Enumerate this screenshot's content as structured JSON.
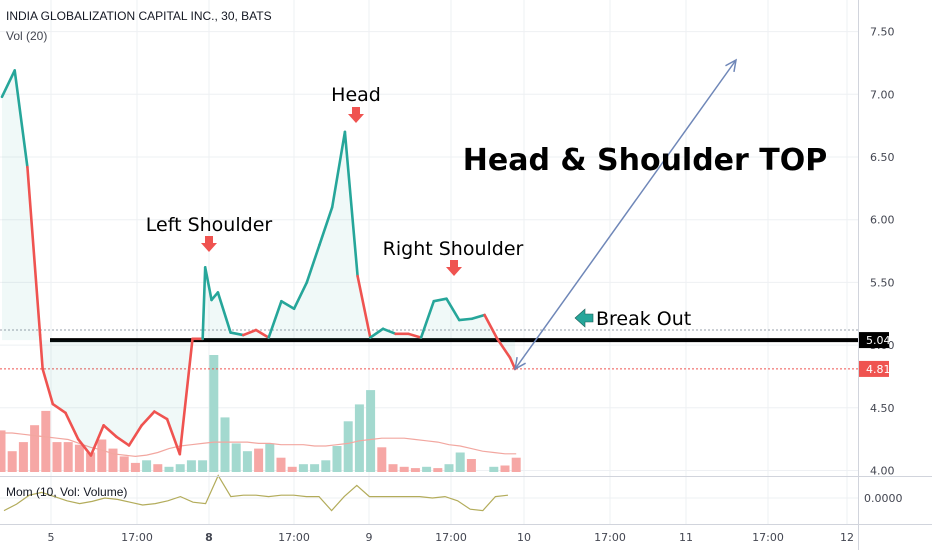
{
  "header": {
    "symbol_line": "INDIA GLOBALIZATION CAPITAL INC., 30, BATS",
    "volume_indicator": "Vol (20)",
    "momentum_indicator": "Mom (10, Vol: Volume)"
  },
  "annotations": {
    "title": "Head & Shoulder TOP",
    "head": "Head",
    "left_shoulder": "Left Shoulder",
    "right_shoulder": "Right Shoulder",
    "break_out": "Break Out"
  },
  "colors": {
    "up": "#26a69a",
    "down": "#ef5350",
    "marker": "#ef5350",
    "projection": "#6f87b8",
    "breakout_arrow": "#26a69a",
    "momentum": "#b3ac5b",
    "volume_ma": "#f2a7a0",
    "grid": "#eef0f3"
  },
  "chart_data": [
    {
      "type": "line",
      "name": "price",
      "x_tick_labels": [
        "5",
        "17:00",
        "8",
        "17:00",
        "9",
        "17:00",
        "10",
        "17:00",
        "11",
        "17:00",
        "12"
      ],
      "bold_x_ticks": [
        "8"
      ],
      "y_tick_labels": [
        "4.00",
        "4.50",
        "5.00",
        "5.50",
        "6.00",
        "6.50",
        "7.00",
        "7.50"
      ],
      "ylim": [
        4.0,
        7.78
      ],
      "grid": true,
      "x": [
        0,
        1,
        2,
        3,
        3.2,
        4,
        5,
        6,
        7,
        8,
        9,
        10,
        11,
        12,
        13,
        14,
        15,
        15.8,
        16,
        16.5,
        17,
        18,
        19,
        20,
        21,
        22,
        23,
        24,
        25,
        26,
        27,
        28,
        29,
        30,
        31,
        32,
        33,
        34,
        35,
        36,
        37,
        38,
        39,
        40,
        40.4
      ],
      "values": [
        6.98,
        7.19,
        6.42,
        5.08,
        4.81,
        4.53,
        4.46,
        4.25,
        4.12,
        4.36,
        4.27,
        4.2,
        4.36,
        4.47,
        4.41,
        4.13,
        5.05,
        5.05,
        5.62,
        5.36,
        5.42,
        5.1,
        5.08,
        5.12,
        5.06,
        5.35,
        5.29,
        5.5,
        5.8,
        6.1,
        6.7,
        5.55,
        5.06,
        5.13,
        5.09,
        5.09,
        5.06,
        5.35,
        5.37,
        5.2,
        5.21,
        5.24,
        5.05,
        4.9,
        4.81
      ],
      "segment_colors": [
        "up",
        "up",
        "down",
        "down",
        "down",
        "down",
        "down",
        "down",
        "down",
        "down",
        "down",
        "down",
        "down",
        "down",
        "down",
        "down",
        "down",
        "up",
        "up",
        "up",
        "up",
        "up",
        "down",
        "down",
        "up",
        "up",
        "up",
        "up",
        "up",
        "up",
        "up",
        "down",
        "up",
        "up",
        "down",
        "down",
        "up",
        "up",
        "up",
        "up",
        "up",
        "down",
        "down",
        "down"
      ],
      "reference_levels": [
        {
          "label": "5.04",
          "value": 5.04,
          "style": "thick-black"
        },
        {
          "label": "4.81",
          "value": 4.81,
          "style": "dotted-red"
        },
        {
          "label": "",
          "value": 5.12,
          "style": "dotted-grey"
        }
      ],
      "projection_arrow": {
        "from": [
          40.4,
          4.81
        ],
        "to": [
          58.4,
          7.3
        ]
      }
    },
    {
      "type": "bar",
      "name": "Vol (20)",
      "values": [
        0.32,
        0.16,
        0.23,
        0.36,
        0.47,
        0.23,
        0.23,
        0.21,
        0.15,
        0.25,
        0.18,
        0.12,
        0.07,
        0.09,
        0.06,
        0.04,
        0.06,
        0.09,
        0.09,
        0.9,
        0.42,
        0.22,
        0.16,
        0.18,
        0.22,
        0.11,
        0.04,
        0.06,
        0.06,
        0.09,
        0.2,
        0.39,
        0.52,
        0.63,
        0.19,
        0.06,
        0.04,
        0.03,
        0.04,
        0.03,
        0.06,
        0.15,
        0.1,
        0.0,
        0.04,
        0.05,
        0.11
      ],
      "colors": [
        "down",
        "down",
        "down",
        "down",
        "down",
        "down",
        "down",
        "down",
        "down",
        "down",
        "down",
        "down",
        "down",
        "up",
        "down",
        "up",
        "up",
        "up",
        "up",
        "up",
        "up",
        "up",
        "up",
        "down",
        "up",
        "down",
        "down",
        "up",
        "up",
        "up",
        "up",
        "up",
        "up",
        "up",
        "down",
        "down",
        "down",
        "down",
        "up",
        "down",
        "up",
        "up",
        "down",
        "up",
        "up",
        "down",
        "down"
      ],
      "ma_values": [
        0.3,
        0.3,
        0.29,
        0.28,
        0.27,
        0.26,
        0.25,
        0.22,
        0.19,
        0.17,
        0.14,
        0.13,
        0.12,
        0.13,
        0.15,
        0.18,
        0.2,
        0.21,
        0.22,
        0.23,
        0.23,
        0.23,
        0.23,
        0.22,
        0.22,
        0.21,
        0.21,
        0.21,
        0.2,
        0.2,
        0.21,
        0.22,
        0.24,
        0.25,
        0.26,
        0.26,
        0.26,
        0.25,
        0.24,
        0.23,
        0.21,
        0.2,
        0.18,
        0.16,
        0.15,
        0.14,
        0.14
      ]
    },
    {
      "type": "line",
      "name": "Mom (10, Vol: Volume)",
      "y_tick_labels": [
        "0.0000"
      ],
      "zero": 0,
      "x": [
        0,
        1,
        2,
        3,
        4,
        5,
        6,
        7,
        8,
        9,
        10,
        11,
        12,
        13,
        14,
        15,
        16,
        17,
        18,
        19,
        20,
        21,
        22,
        23,
        24,
        25,
        26,
        27,
        28,
        29,
        30,
        31,
        32,
        33,
        34,
        35,
        36,
        37,
        38,
        39,
        40
      ],
      "values": [
        -0.45,
        -0.22,
        0.1,
        0.2,
        0.05,
        -0.1,
        -0.2,
        -0.12,
        0.0,
        -0.05,
        -0.15,
        -0.25,
        -0.2,
        -0.1,
        0.05,
        -0.15,
        -0.2,
        0.8,
        0.05,
        0.1,
        0.1,
        0.05,
        0.1,
        0.1,
        0.05,
        0.05,
        -0.45,
        0.05,
        0.45,
        0.05,
        0.05,
        0.05,
        0.05,
        0.05,
        0.0,
        0.05,
        -0.1,
        -0.4,
        -0.45,
        0.05,
        0.1
      ]
    }
  ]
}
